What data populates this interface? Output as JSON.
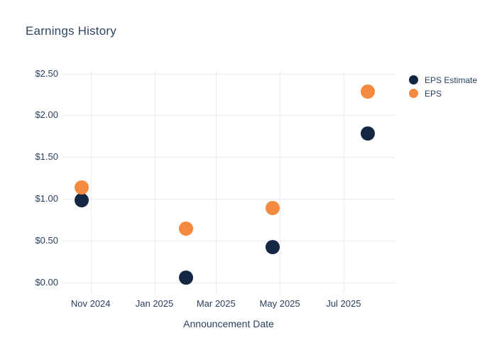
{
  "colors": {
    "background": "#ffffff",
    "title_text": "#2e4662",
    "tick_text": "#2a3f5f",
    "grid_line": "#e6ebf5",
    "eps_estimate": "#132742",
    "eps": "#f48940"
  },
  "chart_data": {
    "type": "scatter",
    "title": "Earnings History",
    "xlabel": "Announcement Date",
    "ylabel": "",
    "grid": true,
    "legend_position": "top-right",
    "x_axis": {
      "type": "time",
      "range": [
        "2024-10-05",
        "2025-08-19"
      ],
      "ticks": [
        {
          "date": "2024-11-01",
          "label": "Nov 2024"
        },
        {
          "date": "2025-01-01",
          "label": "Jan 2025"
        },
        {
          "date": "2025-03-01",
          "label": "Mar 2025"
        },
        {
          "date": "2025-05-01",
          "label": "May 2025"
        },
        {
          "date": "2025-07-01",
          "label": "Jul 2025"
        }
      ]
    },
    "y_axis": {
      "range": [
        -0.14,
        2.53
      ],
      "ticks": [
        {
          "value": 0.0,
          "label": "$0.00"
        },
        {
          "value": 0.5,
          "label": "$0.50"
        },
        {
          "value": 1.0,
          "label": "$1.00"
        },
        {
          "value": 1.5,
          "label": "$1.50"
        },
        {
          "value": 2.0,
          "label": "$2.00"
        },
        {
          "value": 2.5,
          "label": "$2.50"
        }
      ]
    },
    "series": [
      {
        "name": "EPS Estimate",
        "color": "#132742",
        "marker_size_px": 20,
        "points": [
          {
            "date": "2024-10-23",
            "value": 0.98
          },
          {
            "date": "2025-01-31",
            "value": 0.06
          },
          {
            "date": "2025-04-24",
            "value": 0.42
          },
          {
            "date": "2025-07-24",
            "value": 1.78
          }
        ]
      },
      {
        "name": "EPS",
        "color": "#f48940",
        "marker_size_px": 20,
        "points": [
          {
            "date": "2024-10-23",
            "value": 1.14
          },
          {
            "date": "2025-01-31",
            "value": 0.64
          },
          {
            "date": "2025-04-24",
            "value": 0.89
          },
          {
            "date": "2025-07-24",
            "value": 2.28
          }
        ]
      }
    ]
  }
}
